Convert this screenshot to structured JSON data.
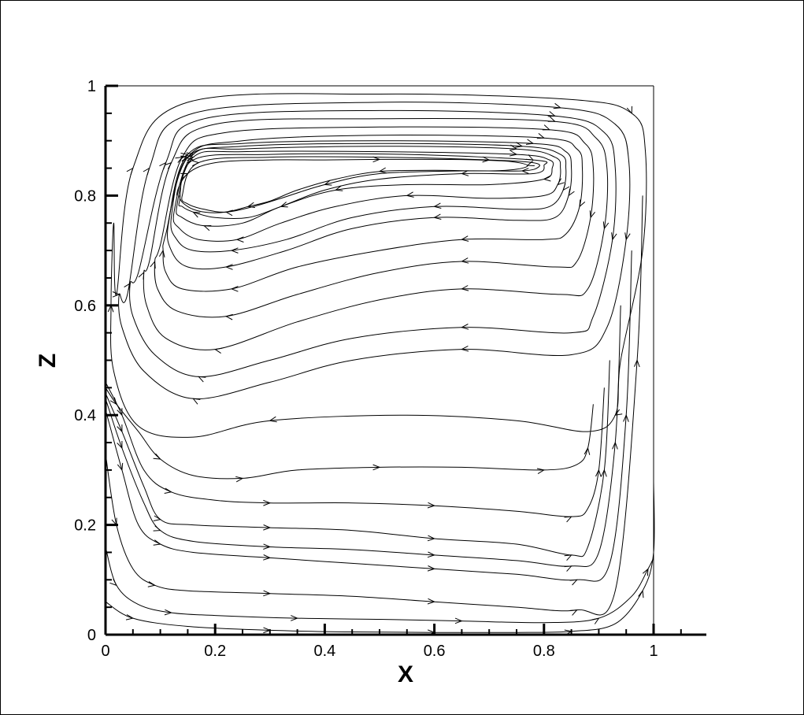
{
  "chart_data": {
    "type": "line",
    "title": "",
    "xlabel": "X",
    "ylabel": "Z",
    "xlim": [
      0,
      1
    ],
    "ylim": [
      0,
      1
    ],
    "x_ticks": [
      "0",
      "0.2",
      "0.4",
      "0.6",
      "0.8",
      "1"
    ],
    "y_ticks": [
      "0",
      "0.2",
      "0.4",
      "0.6",
      "0.8",
      "1"
    ],
    "x_tick_values": [
      0,
      0.2,
      0.4,
      0.6,
      0.8,
      1
    ],
    "y_tick_values": [
      0,
      0.2,
      0.4,
      0.6,
      0.8,
      1
    ],
    "grid": false,
    "legend": "none",
    "line_color": "#000000",
    "upper_vortex_streamlines": [
      {
        "direction": "clockwise",
        "x": [
          0.02,
          0.05,
          0.15,
          0.5,
          0.85,
          0.96,
          0.985,
          0.98,
          0.94,
          0.93,
          0.88,
          0.75,
          0.55,
          0.3,
          0.16,
          0.06,
          0.015,
          0.01,
          0.015,
          0.02
        ],
        "z": [
          0.62,
          0.85,
          0.97,
          0.985,
          0.975,
          0.95,
          0.88,
          0.7,
          0.5,
          0.4,
          0.37,
          0.39,
          0.4,
          0.39,
          0.36,
          0.38,
          0.48,
          0.6,
          0.75,
          0.62
        ]
      },
      {
        "direction": "clockwise",
        "x": [
          0.04,
          0.08,
          0.16,
          0.5,
          0.83,
          0.93,
          0.955,
          0.95,
          0.915,
          0.85,
          0.65,
          0.45,
          0.3,
          0.16,
          0.07,
          0.03,
          0.025,
          0.04
        ],
        "z": [
          0.62,
          0.85,
          0.95,
          0.97,
          0.96,
          0.93,
          0.86,
          0.72,
          0.56,
          0.51,
          0.52,
          0.5,
          0.46,
          0.43,
          0.48,
          0.56,
          0.62,
          0.62
        ]
      },
      {
        "direction": "clockwise",
        "x": [
          0.06,
          0.11,
          0.18,
          0.5,
          0.82,
          0.91,
          0.93,
          0.925,
          0.89,
          0.85,
          0.65,
          0.45,
          0.3,
          0.17,
          0.09,
          0.05,
          0.045,
          0.06
        ],
        "z": [
          0.66,
          0.86,
          0.94,
          0.955,
          0.945,
          0.915,
          0.85,
          0.72,
          0.58,
          0.55,
          0.56,
          0.54,
          0.5,
          0.47,
          0.51,
          0.58,
          0.64,
          0.66
        ]
      },
      {
        "direction": "clockwise",
        "x": [
          0.08,
          0.12,
          0.2,
          0.5,
          0.82,
          0.895,
          0.915,
          0.91,
          0.88,
          0.83,
          0.65,
          0.5,
          0.35,
          0.2,
          0.11,
          0.075,
          0.07,
          0.08
        ],
        "z": [
          0.68,
          0.86,
          0.93,
          0.94,
          0.935,
          0.905,
          0.85,
          0.74,
          0.63,
          0.62,
          0.63,
          0.61,
          0.57,
          0.52,
          0.54,
          0.6,
          0.66,
          0.68
        ]
      },
      {
        "direction": "clockwise",
        "x": [
          0.1,
          0.14,
          0.22,
          0.5,
          0.81,
          0.875,
          0.89,
          0.885,
          0.86,
          0.82,
          0.65,
          0.5,
          0.35,
          0.22,
          0.13,
          0.095,
          0.09,
          0.1
        ],
        "z": [
          0.71,
          0.87,
          0.915,
          0.925,
          0.92,
          0.895,
          0.85,
          0.76,
          0.68,
          0.67,
          0.68,
          0.66,
          0.62,
          0.58,
          0.59,
          0.63,
          0.68,
          0.71
        ]
      },
      {
        "direction": "clockwise",
        "x": [
          0.11,
          0.15,
          0.25,
          0.5,
          0.8,
          0.86,
          0.87,
          0.865,
          0.84,
          0.8,
          0.65,
          0.5,
          0.35,
          0.23,
          0.14,
          0.11,
          0.105,
          0.11
        ],
        "z": [
          0.73,
          0.87,
          0.9,
          0.91,
          0.905,
          0.885,
          0.85,
          0.78,
          0.73,
          0.72,
          0.72,
          0.7,
          0.67,
          0.63,
          0.63,
          0.66,
          0.7,
          0.73
        ]
      },
      {
        "direction": "clockwise",
        "x": [
          0.115,
          0.15,
          0.25,
          0.5,
          0.78,
          0.84,
          0.85,
          0.845,
          0.82,
          0.75,
          0.6,
          0.45,
          0.33,
          0.22,
          0.15,
          0.12,
          0.115
        ],
        "z": [
          0.75,
          0.875,
          0.895,
          0.9,
          0.895,
          0.88,
          0.85,
          0.8,
          0.76,
          0.755,
          0.76,
          0.74,
          0.7,
          0.67,
          0.67,
          0.7,
          0.75
        ]
      },
      {
        "direction": "clockwise",
        "x": [
          0.12,
          0.15,
          0.25,
          0.5,
          0.76,
          0.83,
          0.84,
          0.835,
          0.81,
          0.75,
          0.6,
          0.45,
          0.33,
          0.23,
          0.16,
          0.13,
          0.12
        ],
        "z": [
          0.76,
          0.87,
          0.89,
          0.895,
          0.89,
          0.875,
          0.85,
          0.81,
          0.78,
          0.775,
          0.78,
          0.76,
          0.72,
          0.7,
          0.7,
          0.72,
          0.76
        ]
      },
      {
        "direction": "clockwise",
        "x": [
          0.125,
          0.16,
          0.25,
          0.5,
          0.75,
          0.82,
          0.83,
          0.825,
          0.8,
          0.7,
          0.55,
          0.42,
          0.32,
          0.24,
          0.17,
          0.135,
          0.125
        ],
        "z": [
          0.77,
          0.875,
          0.885,
          0.89,
          0.885,
          0.87,
          0.85,
          0.82,
          0.8,
          0.795,
          0.8,
          0.78,
          0.75,
          0.72,
          0.72,
          0.74,
          0.77
        ]
      },
      {
        "direction": "clockwise",
        "x": [
          0.13,
          0.16,
          0.25,
          0.5,
          0.75,
          0.81,
          0.815,
          0.8,
          0.7,
          0.55,
          0.42,
          0.32,
          0.25,
          0.18,
          0.14,
          0.13
        ],
        "z": [
          0.78,
          0.87,
          0.88,
          0.88,
          0.875,
          0.865,
          0.85,
          0.83,
          0.82,
          0.82,
          0.81,
          0.78,
          0.75,
          0.745,
          0.76,
          0.78
        ]
      },
      {
        "direction": "clockwise",
        "x": [
          0.135,
          0.16,
          0.3,
          0.55,
          0.78,
          0.8,
          0.78,
          0.65,
          0.5,
          0.4,
          0.32,
          0.26,
          0.2,
          0.16,
          0.14,
          0.135
        ],
        "z": [
          0.79,
          0.865,
          0.875,
          0.875,
          0.865,
          0.855,
          0.84,
          0.84,
          0.83,
          0.81,
          0.78,
          0.76,
          0.76,
          0.77,
          0.78,
          0.79
        ]
      },
      {
        "direction": "clockwise",
        "x": [
          0.14,
          0.17,
          0.3,
          0.5,
          0.7,
          0.78,
          0.79,
          0.76,
          0.65,
          0.5,
          0.4,
          0.32,
          0.27,
          0.22,
          0.18,
          0.15,
          0.14
        ],
        "z": [
          0.8,
          0.86,
          0.87,
          0.87,
          0.865,
          0.86,
          0.852,
          0.845,
          0.845,
          0.84,
          0.82,
          0.795,
          0.78,
          0.77,
          0.775,
          0.785,
          0.8
        ]
      },
      {
        "direction": "clockwise",
        "x": [
          0.13,
          0.15,
          0.2,
          0.3,
          0.4,
          0.5,
          0.6,
          0.68,
          0.74,
          0.77,
          0.75,
          0.7,
          0.6,
          0.5,
          0.42,
          0.35,
          0.3,
          0.26,
          0.22,
          0.18,
          0.15,
          0.135
        ],
        "z": [
          0.8,
          0.84,
          0.86,
          0.865,
          0.865,
          0.866,
          0.866,
          0.865,
          0.862,
          0.855,
          0.848,
          0.845,
          0.846,
          0.844,
          0.83,
          0.81,
          0.79,
          0.78,
          0.77,
          0.77,
          0.78,
          0.8
        ]
      }
    ],
    "lower_streamlines": [
      {
        "direction": "rightward",
        "x": [
          0.0,
          0.02,
          0.06,
          0.1,
          0.16,
          0.25,
          0.35,
          0.5,
          0.65,
          0.8,
          0.86,
          0.88,
          0.89
        ],
        "z": [
          0.45,
          0.42,
          0.37,
          0.32,
          0.29,
          0.285,
          0.3,
          0.305,
          0.305,
          0.3,
          0.31,
          0.34,
          0.42
        ]
      },
      {
        "direction": "rightward",
        "x": [
          0.0,
          0.03,
          0.07,
          0.12,
          0.2,
          0.3,
          0.45,
          0.6,
          0.75,
          0.85,
          0.88,
          0.9,
          0.91
        ],
        "z": [
          0.46,
          0.4,
          0.3,
          0.26,
          0.245,
          0.24,
          0.24,
          0.235,
          0.225,
          0.215,
          0.23,
          0.3,
          0.45
        ]
      },
      {
        "direction": "rightward",
        "x": [
          0.0,
          0.03,
          0.07,
          0.1,
          0.16,
          0.3,
          0.45,
          0.6,
          0.75,
          0.85,
          0.88,
          0.91,
          0.92
        ],
        "z": [
          0.44,
          0.37,
          0.27,
          0.21,
          0.2,
          0.195,
          0.19,
          0.175,
          0.165,
          0.145,
          0.16,
          0.3,
          0.5
        ]
      },
      {
        "direction": "rightward",
        "x": [
          0.0,
          0.03,
          0.07,
          0.1,
          0.16,
          0.3,
          0.45,
          0.6,
          0.75,
          0.85,
          0.9,
          0.93,
          0.94
        ],
        "z": [
          0.43,
          0.34,
          0.24,
          0.19,
          0.17,
          0.16,
          0.155,
          0.145,
          0.135,
          0.125,
          0.15,
          0.35,
          0.6
        ]
      },
      {
        "direction": "rightward",
        "x": [
          0.0,
          0.03,
          0.06,
          0.1,
          0.16,
          0.3,
          0.45,
          0.6,
          0.75,
          0.86,
          0.92,
          0.95,
          0.96
        ],
        "z": [
          0.41,
          0.3,
          0.2,
          0.165,
          0.15,
          0.14,
          0.13,
          0.12,
          0.11,
          0.1,
          0.13,
          0.4,
          0.7
        ]
      },
      {
        "direction": "rightward",
        "x": [
          0.0,
          0.02,
          0.05,
          0.09,
          0.15,
          0.3,
          0.45,
          0.6,
          0.75,
          0.86,
          0.93,
          0.97,
          0.98
        ],
        "z": [
          0.33,
          0.2,
          0.12,
          0.09,
          0.08,
          0.075,
          0.07,
          0.06,
          0.05,
          0.045,
          0.08,
          0.5,
          0.8
        ]
      },
      {
        "direction": "rightward",
        "x": [
          0.0,
          0.02,
          0.06,
          0.12,
          0.2,
          0.35,
          0.5,
          0.65,
          0.8,
          0.9,
          0.96,
          0.99,
          1.0
        ],
        "z": [
          0.16,
          0.09,
          0.055,
          0.04,
          0.035,
          0.03,
          0.028,
          0.025,
          0.022,
          0.03,
          0.07,
          0.12,
          0.14
        ]
      },
      {
        "direction": "rightward",
        "x": [
          0.0,
          0.05,
          0.15,
          0.3,
          0.45,
          0.6,
          0.75,
          0.85,
          0.93,
          0.98,
          1.0,
          1.0
        ],
        "z": [
          0.06,
          0.03,
          0.015,
          0.008,
          0.005,
          0.004,
          0.004,
          0.006,
          0.02,
          0.08,
          0.15,
          0.28
        ]
      }
    ]
  }
}
